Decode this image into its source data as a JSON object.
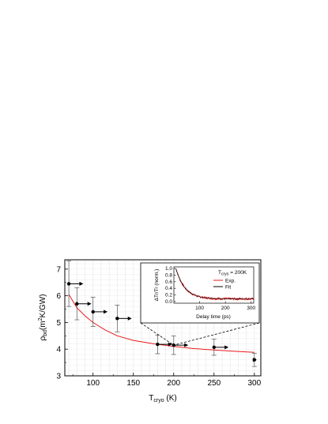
{
  "chart_data": [
    {
      "type": "scatter",
      "xlabel": "T",
      "xlabel_sub": "cryo",
      "xlabel_unit": " (K)",
      "ylabel": "ρ",
      "ylabel_sub": "bd",
      "ylabel_rest": "(m",
      "ylabel_sup": "2",
      "ylabel_unit": "K/GW)",
      "xlim": [
        65,
        308
      ],
      "ylim": [
        3,
        7.35
      ],
      "xticks": [
        100,
        150,
        200,
        250,
        300
      ],
      "yticks": [
        3,
        4,
        5,
        6,
        7
      ],
      "grid": true,
      "series": [
        {
          "type": "points_with_error",
          "x": [
            70,
            80,
            100,
            130,
            180,
            200,
            250,
            300
          ],
          "y": [
            6.45,
            5.7,
            5.4,
            5.15,
            4.18,
            4.15,
            4.07,
            3.6
          ],
          "yerr_low": [
            0.85,
            0.6,
            0.55,
            0.5,
            0.35,
            0.35,
            0.3,
            0.25
          ],
          "yerr_high": [
            0.85,
            0.6,
            0.55,
            0.5,
            0.35,
            0.35,
            0.3,
            0.25
          ],
          "color": "#000000"
        },
        {
          "type": "line",
          "x": [
            70,
            80,
            90,
            100,
            115,
            130,
            150,
            175,
            200,
            225,
            250,
            275,
            300
          ],
          "y": [
            6.05,
            5.55,
            5.25,
            5.0,
            4.72,
            4.5,
            4.33,
            4.2,
            4.1,
            4.02,
            3.97,
            3.92,
            3.88
          ],
          "color": "#e8191c"
        }
      ],
      "arrows": [
        {
          "x_from": 70,
          "x_to": 88,
          "y": 6.45
        },
        {
          "x_from": 80,
          "x_to": 98,
          "y": 5.7
        },
        {
          "x_from": 100,
          "x_to": 118,
          "y": 5.4
        },
        {
          "x_from": 130,
          "x_to": 148,
          "y": 5.15
        },
        {
          "x_from": 180,
          "x_to": 198,
          "y": 4.18
        },
        {
          "x_from": 200,
          "x_to": 218,
          "y": 4.15
        },
        {
          "x_from": 250,
          "x_to": 268,
          "y": 4.07
        },
        {
          "x_from": 300,
          "x_to": 303,
          "y": 3.6
        }
      ],
      "zoom_marker_x": 200
    },
    {
      "type": "line",
      "inset": true,
      "annotation_T": "T",
      "annotation_sub": "cryo",
      "annotation_value": " = 200K",
      "xlabel": "Delay time (ps)",
      "ylabel": "ΔTr/Tr (norm.)",
      "xlim": [
        0,
        310
      ],
      "ylim": [
        -0.05,
        1.05
      ],
      "xticks": [
        100,
        200,
        300
      ],
      "yticks": [
        0.0,
        0.2,
        0.4,
        0.6,
        0.8,
        1.0
      ],
      "ytick_labels": [
        "0.0",
        "0.2",
        "0.4",
        "0.6",
        "0.8",
        "1.0"
      ],
      "legend": [
        {
          "name": "Exp.",
          "color": "#e8191c"
        },
        {
          "name": "Fit",
          "color": "#000000"
        }
      ],
      "legend_position": "top-right",
      "fit": {
        "amplitude": 0.92,
        "tau": 35,
        "offset": 0.08,
        "x_start": 8
      },
      "exp": {
        "amplitude": 0.92,
        "tau": 35,
        "offset": 0.08,
        "x_start": 8,
        "noise": 0.035,
        "npoints": 260
      }
    }
  ]
}
